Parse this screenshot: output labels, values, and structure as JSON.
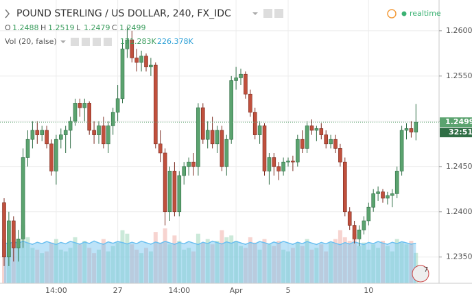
{
  "chart_data": {
    "type": "candlestick",
    "title": "POUND STERLING / US DOLLAR, 240, FX_IDC",
    "status": "realtime",
    "ohlc_keys": [
      "O",
      "H",
      "L",
      "C"
    ],
    "volume_title": "Vol (20, false)",
    "volume_legend": [
      "171.283K",
      "226.378K"
    ],
    "countdown": "32:51",
    "badge": "7",
    "up_color": "#5ba36f",
    "down_color": "#c0503d",
    "volume_up_color": "#a8dbbf",
    "volume_down_color": "#f2b8b0",
    "volume_ma_color": "#6cc0f0",
    "grid": true,
    "ylim": [
      1.2321,
      1.2634
    ],
    "yticks": [
      {
        "value": 1.235,
        "label": "1.2350"
      },
      {
        "value": 1.24,
        "label": "1.2400"
      },
      {
        "value": 1.245,
        "label": "1.2450"
      },
      {
        "value": 1.25,
        "label": "1.2500"
      },
      {
        "value": 1.255,
        "label": "1.2550"
      },
      {
        "value": 1.26,
        "label": "1.2600"
      }
    ],
    "y2lim": [
      0,
      1600
    ],
    "categories": [
      null,
      null,
      null,
      null,
      null,
      null,
      null,
      null,
      null,
      null,
      null,
      "14:00",
      null,
      null,
      null,
      null,
      null,
      null,
      null,
      null,
      null,
      null,
      null,
      null,
      "27",
      null,
      null,
      null,
      null,
      null,
      null,
      null,
      null,
      null,
      null,
      null,
      null,
      "14:00",
      null,
      null,
      null,
      null,
      null,
      null,
      null,
      null,
      null,
      null,
      null,
      "Apr",
      null,
      null,
      null,
      null,
      null,
      null,
      null,
      null,
      null,
      null,
      "5",
      null,
      null,
      null,
      null,
      null,
      null,
      null,
      null,
      null,
      null,
      null,
      null,
      null,
      null,
      null,
      null,
      "10",
      null,
      null,
      null,
      null,
      null,
      null,
      null,
      null,
      null,
      null
    ],
    "ohlc": [
      [
        1.241,
        1.2415,
        1.234,
        1.235
      ],
      [
        1.235,
        1.24,
        1.234,
        1.239
      ],
      [
        1.239,
        1.2395,
        1.2345,
        1.236
      ],
      [
        1.236,
        1.238,
        1.2345,
        1.237
      ],
      [
        1.237,
        1.247,
        1.236,
        1.246
      ],
      [
        1.246,
        1.249,
        1.245,
        1.248
      ],
      [
        1.248,
        1.25,
        1.247,
        1.249
      ],
      [
        1.249,
        1.25,
        1.2475,
        1.2485
      ],
      [
        1.2485,
        1.2495,
        1.2478,
        1.249
      ],
      [
        1.249,
        1.2495,
        1.247,
        1.2475
      ],
      [
        1.2475,
        1.248,
        1.244,
        1.2445
      ],
      [
        1.2445,
        1.2485,
        1.243,
        1.248
      ],
      [
        1.248,
        1.2492,
        1.247,
        1.2485
      ],
      [
        1.2485,
        1.2495,
        1.2465,
        1.249
      ],
      [
        1.249,
        1.2505,
        1.247,
        1.25
      ],
      [
        1.25,
        1.2525,
        1.2495,
        1.252
      ],
      [
        1.252,
        1.2525,
        1.2505,
        1.2515
      ],
      [
        1.2515,
        1.2525,
        1.25,
        1.252
      ],
      [
        1.252,
        1.2522,
        1.2485,
        1.249
      ],
      [
        1.249,
        1.25,
        1.2475,
        1.2485
      ],
      [
        1.2485,
        1.25,
        1.2475,
        1.2495
      ],
      [
        1.2495,
        1.2505,
        1.247,
        1.2475
      ],
      [
        1.2475,
        1.25,
        1.2465,
        1.2495
      ],
      [
        1.2495,
        1.2515,
        1.2485,
        1.251
      ],
      [
        1.251,
        1.254,
        1.25,
        1.2525
      ],
      [
        1.2525,
        1.259,
        1.252,
        1.258
      ],
      [
        1.258,
        1.2605,
        1.257,
        1.259
      ],
      [
        1.259,
        1.26,
        1.2565,
        1.257
      ],
      [
        1.257,
        1.258,
        1.2555,
        1.2565
      ],
      [
        1.2565,
        1.2578,
        1.2555,
        1.2572
      ],
      [
        1.2572,
        1.2575,
        1.2555,
        1.256
      ],
      [
        1.256,
        1.257,
        1.255,
        1.2562
      ],
      [
        1.2562,
        1.2565,
        1.247,
        1.2475
      ],
      [
        1.2475,
        1.249,
        1.2455,
        1.2465
      ],
      [
        1.2465,
        1.247,
        1.2385,
        1.24
      ],
      [
        1.24,
        1.245,
        1.239,
        1.2445
      ],
      [
        1.2445,
        1.2455,
        1.2395,
        1.24
      ],
      [
        1.24,
        1.2445,
        1.2395,
        1.244
      ],
      [
        1.244,
        1.2455,
        1.243,
        1.245
      ],
      [
        1.245,
        1.246,
        1.244,
        1.2455
      ],
      [
        1.2455,
        1.2465,
        1.244,
        1.245
      ],
      [
        1.245,
        1.252,
        1.244,
        1.2515
      ],
      [
        1.2515,
        1.252,
        1.2475,
        1.248
      ],
      [
        1.248,
        1.25,
        1.247,
        1.249
      ],
      [
        1.249,
        1.2505,
        1.247,
        1.2475
      ],
      [
        1.2475,
        1.2495,
        1.2465,
        1.249
      ],
      [
        1.249,
        1.2495,
        1.2445,
        1.245
      ],
      [
        1.245,
        1.2485,
        1.244,
        1.248
      ],
      [
        1.248,
        1.255,
        1.2475,
        1.2545
      ],
      [
        1.2545,
        1.256,
        1.2535,
        1.2548
      ],
      [
        1.2548,
        1.2558,
        1.254,
        1.2552
      ],
      [
        1.2552,
        1.2555,
        1.2525,
        1.253
      ],
      [
        1.253,
        1.2535,
        1.2505,
        1.251
      ],
      [
        1.251,
        1.2515,
        1.248,
        1.2485
      ],
      [
        1.2485,
        1.25,
        1.2475,
        1.2495
      ],
      [
        1.2495,
        1.2498,
        1.244,
        1.2445
      ],
      [
        1.2445,
        1.2465,
        1.243,
        1.246
      ],
      [
        1.246,
        1.2465,
        1.244,
        1.245
      ],
      [
        1.245,
        1.2455,
        1.2435,
        1.2445
      ],
      [
        1.2445,
        1.246,
        1.244,
        1.2455
      ],
      [
        1.2455,
        1.246,
        1.245,
        1.2456
      ],
      [
        1.2456,
        1.2462,
        1.2445,
        1.2455
      ],
      [
        1.2455,
        1.2485,
        1.245,
        1.248
      ],
      [
        1.248,
        1.249,
        1.2465,
        1.247
      ],
      [
        1.247,
        1.25,
        1.2465,
        1.2495
      ],
      [
        1.2495,
        1.2502,
        1.2485,
        1.249
      ],
      [
        1.249,
        1.2495,
        1.2478,
        1.2492
      ],
      [
        1.2492,
        1.2498,
        1.248,
        1.2485
      ],
      [
        1.2485,
        1.249,
        1.247,
        1.2475
      ],
      [
        1.2475,
        1.2485,
        1.247,
        1.248
      ],
      [
        1.248,
        1.2485,
        1.2465,
        1.247
      ],
      [
        1.247,
        1.2475,
        1.245,
        1.2455
      ],
      [
        1.2455,
        1.246,
        1.2395,
        1.24
      ],
      [
        1.24,
        1.2405,
        1.238,
        1.2385
      ],
      [
        1.2385,
        1.239,
        1.2365,
        1.237
      ],
      [
        1.237,
        1.2385,
        1.2362,
        1.238
      ],
      [
        1.238,
        1.2395,
        1.2375,
        1.239
      ],
      [
        1.239,
        1.241,
        1.2385,
        1.2405
      ],
      [
        1.2405,
        1.2425,
        1.24,
        1.242
      ],
      [
        1.242,
        1.2428,
        1.2412,
        1.2422
      ],
      [
        1.2422,
        1.2425,
        1.241,
        1.2415
      ],
      [
        1.2415,
        1.2422,
        1.2408,
        1.2418
      ],
      [
        1.2418,
        1.2425,
        1.2405,
        1.242
      ],
      [
        1.242,
        1.245,
        1.2415,
        1.2445
      ],
      [
        1.2445,
        1.2495,
        1.244,
        1.249
      ],
      [
        1.249,
        1.2498,
        1.248,
        1.2492
      ],
      [
        1.2492,
        1.25,
        1.2482,
        1.2488
      ],
      [
        1.2488,
        1.2519,
        1.2479,
        1.2499
      ]
    ],
    "volume": [
      250,
      180,
      300,
      210,
      330,
      260,
      200,
      190,
      170,
      180,
      230,
      250,
      190,
      180,
      200,
      260,
      220,
      240,
      200,
      170,
      190,
      250,
      180,
      210,
      230,
      300,
      280,
      220,
      190,
      170,
      200,
      180,
      290,
      230,
      310,
      220,
      270,
      240,
      190,
      200,
      180,
      280,
      230,
      250,
      220,
      240,
      300,
      260,
      270,
      240,
      210,
      200,
      260,
      230,
      190,
      250,
      220,
      210,
      240,
      190,
      180,
      200,
      230,
      210,
      250,
      190,
      200,
      220,
      180,
      230,
      250,
      300,
      260,
      240,
      280,
      210,
      230,
      190,
      220,
      200,
      240,
      210,
      180,
      250,
      230,
      220,
      240,
      171.283
    ],
    "volume_ma": [
      230,
      222,
      235,
      226,
      238,
      228,
      220,
      232,
      224,
      236,
      227,
      219,
      231,
      223,
      237,
      229,
      221,
      233,
      225,
      239,
      228,
      220,
      234,
      226,
      236,
      230,
      222,
      232,
      224,
      238,
      229,
      221,
      233,
      225,
      237,
      228,
      220,
      231,
      223,
      236,
      227,
      219,
      232,
      224,
      238,
      230,
      222,
      234,
      226,
      237,
      228,
      220,
      231,
      223,
      236,
      229,
      221,
      233,
      225,
      237,
      228,
      220,
      232,
      224,
      236,
      227,
      219,
      231,
      223,
      235,
      226,
      218,
      230,
      222,
      234,
      226,
      219,
      231,
      224,
      236,
      227,
      220,
      232,
      224,
      235,
      228,
      221,
      226.378
    ]
  }
}
